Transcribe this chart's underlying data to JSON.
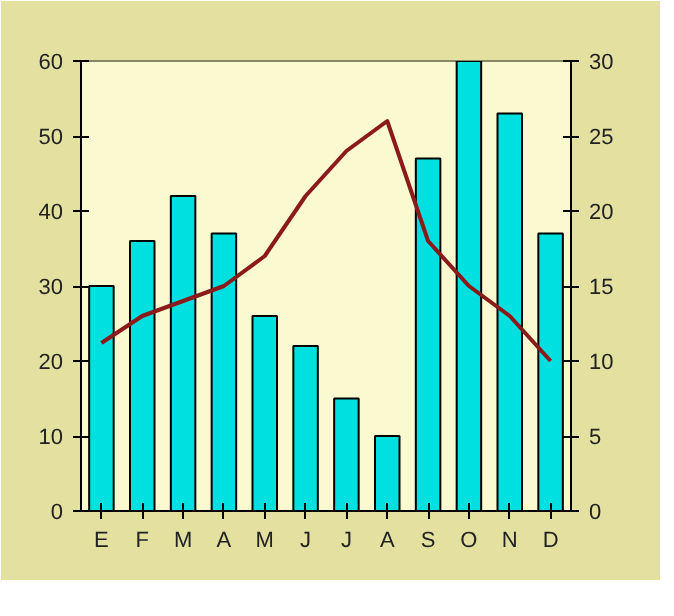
{
  "chart_data": {
    "type": "bar",
    "categories": [
      "E",
      "F",
      "M",
      "A",
      "M",
      "J",
      "J",
      "A",
      "S",
      "O",
      "N",
      "D"
    ],
    "series": [
      {
        "color": "#00e0e0",
        "values": [
          30,
          36,
          42,
          37,
          26,
          22,
          15,
          10,
          47,
          60,
          53,
          37
        ]
      },
      {
        "type": "line",
        "axis": "y2",
        "color": "#8b1a1a",
        "values": [
          11.2,
          13,
          14,
          15,
          17,
          21,
          24,
          26,
          18,
          15,
          13,
          10
        ]
      }
    ],
    "ylim": [
      0,
      60
    ],
    "yticks": [
      0,
      10,
      20,
      30,
      40,
      50,
      60
    ],
    "y2lim": [
      0,
      30
    ],
    "y2ticks": [
      0,
      5,
      10,
      15,
      20,
      25,
      30
    ],
    "marker": "none",
    "line_style": "solid"
  }
}
